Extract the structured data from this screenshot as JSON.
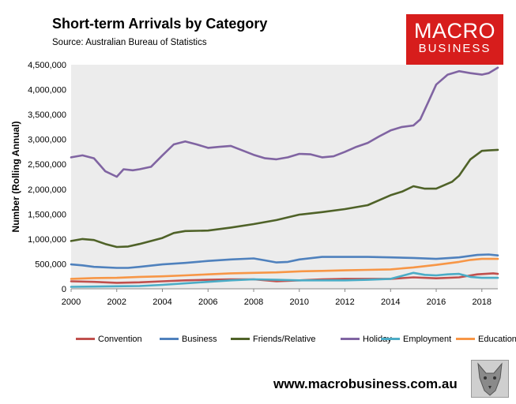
{
  "header": {
    "title": "Short-term Arrivals by Category",
    "source": "Source: Australian Bureau of Statistics"
  },
  "logo": {
    "line1": "MACRO",
    "line2": "BUSINESS",
    "color": "#d71d1c"
  },
  "footer": {
    "website": "www.macrobusiness.com.au"
  },
  "chart_data": {
    "type": "line",
    "title": "Short-term Arrivals by Category",
    "xlabel": "",
    "ylabel": "Number (Rolling Annual)",
    "xlim": [
      2000,
      2018.7
    ],
    "ylim": [
      0,
      4500000
    ],
    "x_ticks": [
      2000,
      2002,
      2004,
      2006,
      2008,
      2010,
      2012,
      2014,
      2016,
      2018
    ],
    "y_ticks": [
      0,
      500000,
      1000000,
      1500000,
      2000000,
      2500000,
      3000000,
      3500000,
      4000000,
      4500000
    ],
    "y_tick_labels": [
      "0",
      "500,000",
      "1,000,000",
      "1,500,000",
      "2,000,000",
      "2,500,000",
      "3,000,000",
      "3,500,000",
      "4,000,000",
      "4,500,000"
    ],
    "plot_background": "#ececec",
    "grid": false,
    "legend_position": "bottom",
    "series": [
      {
        "name": "Convention",
        "color": "#c0504d",
        "points": [
          [
            2000,
            150000
          ],
          [
            2001,
            140000
          ],
          [
            2002,
            120000
          ],
          [
            2003,
            130000
          ],
          [
            2004,
            150000
          ],
          [
            2005,
            170000
          ],
          [
            2006,
            180000
          ],
          [
            2007,
            190000
          ],
          [
            2008,
            190000
          ],
          [
            2009,
            150000
          ],
          [
            2010,
            170000
          ],
          [
            2011,
            190000
          ],
          [
            2012,
            200000
          ],
          [
            2013,
            200000
          ],
          [
            2014,
            200000
          ],
          [
            2015,
            230000
          ],
          [
            2016,
            210000
          ],
          [
            2017,
            230000
          ],
          [
            2017.8,
            290000
          ],
          [
            2018.5,
            310000
          ],
          [
            2018.7,
            300000
          ]
        ]
      },
      {
        "name": "Business",
        "color": "#4f81bd",
        "points": [
          [
            2000,
            490000
          ],
          [
            2000.5,
            470000
          ],
          [
            2001,
            440000
          ],
          [
            2002,
            420000
          ],
          [
            2002.5,
            420000
          ],
          [
            2003,
            440000
          ],
          [
            2004,
            490000
          ],
          [
            2005,
            520000
          ],
          [
            2006,
            560000
          ],
          [
            2007,
            590000
          ],
          [
            2008,
            610000
          ],
          [
            2008.5,
            570000
          ],
          [
            2009,
            530000
          ],
          [
            2009.5,
            540000
          ],
          [
            2010,
            590000
          ],
          [
            2011,
            640000
          ],
          [
            2012,
            640000
          ],
          [
            2013,
            640000
          ],
          [
            2014,
            630000
          ],
          [
            2015,
            620000
          ],
          [
            2016,
            600000
          ],
          [
            2017,
            630000
          ],
          [
            2017.8,
            680000
          ],
          [
            2018.3,
            690000
          ],
          [
            2018.7,
            670000
          ]
        ]
      },
      {
        "name": "Friends/Relative",
        "color": "#4f6228",
        "points": [
          [
            2000,
            960000
          ],
          [
            2000.5,
            1000000
          ],
          [
            2001,
            980000
          ],
          [
            2001.5,
            900000
          ],
          [
            2002,
            840000
          ],
          [
            2002.5,
            850000
          ],
          [
            2003,
            900000
          ],
          [
            2004,
            1020000
          ],
          [
            2004.5,
            1120000
          ],
          [
            2005,
            1160000
          ],
          [
            2006,
            1170000
          ],
          [
            2007,
            1230000
          ],
          [
            2008,
            1300000
          ],
          [
            2009,
            1380000
          ],
          [
            2010,
            1490000
          ],
          [
            2011,
            1540000
          ],
          [
            2012,
            1600000
          ],
          [
            2013,
            1680000
          ],
          [
            2014,
            1880000
          ],
          [
            2014.5,
            1950000
          ],
          [
            2015,
            2060000
          ],
          [
            2015.5,
            2010000
          ],
          [
            2016,
            2010000
          ],
          [
            2016.7,
            2150000
          ],
          [
            2017,
            2270000
          ],
          [
            2017.5,
            2600000
          ],
          [
            2018,
            2770000
          ],
          [
            2018.3,
            2780000
          ],
          [
            2018.7,
            2790000
          ]
        ]
      },
      {
        "name": "Holiday",
        "color": "#8064a2",
        "points": [
          [
            2000,
            2640000
          ],
          [
            2000.5,
            2680000
          ],
          [
            2001,
            2620000
          ],
          [
            2001.5,
            2360000
          ],
          [
            2002,
            2250000
          ],
          [
            2002.3,
            2400000
          ],
          [
            2002.7,
            2380000
          ],
          [
            2003,
            2400000
          ],
          [
            2003.5,
            2450000
          ],
          [
            2004,
            2680000
          ],
          [
            2004.5,
            2900000
          ],
          [
            2005,
            2960000
          ],
          [
            2005.5,
            2900000
          ],
          [
            2006,
            2830000
          ],
          [
            2006.5,
            2850000
          ],
          [
            2007,
            2870000
          ],
          [
            2007.5,
            2780000
          ],
          [
            2008,
            2690000
          ],
          [
            2008.5,
            2620000
          ],
          [
            2009,
            2600000
          ],
          [
            2009.5,
            2640000
          ],
          [
            2010,
            2710000
          ],
          [
            2010.5,
            2700000
          ],
          [
            2011,
            2640000
          ],
          [
            2011.5,
            2660000
          ],
          [
            2012,
            2750000
          ],
          [
            2012.5,
            2850000
          ],
          [
            2013,
            2930000
          ],
          [
            2013.5,
            3060000
          ],
          [
            2014,
            3180000
          ],
          [
            2014.5,
            3250000
          ],
          [
            2015,
            3280000
          ],
          [
            2015.3,
            3400000
          ],
          [
            2015.7,
            3800000
          ],
          [
            2016,
            4100000
          ],
          [
            2016.5,
            4300000
          ],
          [
            2017,
            4370000
          ],
          [
            2017.5,
            4330000
          ],
          [
            2018,
            4300000
          ],
          [
            2018.3,
            4330000
          ],
          [
            2018.7,
            4440000
          ]
        ]
      },
      {
        "name": "Employment",
        "color": "#4bacc6",
        "points": [
          [
            2000,
            40000
          ],
          [
            2001,
            45000
          ],
          [
            2002,
            50000
          ],
          [
            2003,
            55000
          ],
          [
            2004,
            80000
          ],
          [
            2005,
            110000
          ],
          [
            2006,
            140000
          ],
          [
            2007,
            170000
          ],
          [
            2008,
            190000
          ],
          [
            2009,
            180000
          ],
          [
            2010,
            170000
          ],
          [
            2011,
            170000
          ],
          [
            2012,
            170000
          ],
          [
            2013,
            180000
          ],
          [
            2014,
            200000
          ],
          [
            2014.5,
            260000
          ],
          [
            2015,
            320000
          ],
          [
            2015.5,
            280000
          ],
          [
            2016,
            270000
          ],
          [
            2016.5,
            290000
          ],
          [
            2017,
            300000
          ],
          [
            2017.5,
            240000
          ],
          [
            2018,
            220000
          ],
          [
            2018.7,
            220000
          ]
        ]
      },
      {
        "name": "Education",
        "color": "#f79646",
        "points": [
          [
            2000,
            200000
          ],
          [
            2001,
            215000
          ],
          [
            2002,
            220000
          ],
          [
            2003,
            240000
          ],
          [
            2004,
            250000
          ],
          [
            2005,
            270000
          ],
          [
            2006,
            290000
          ],
          [
            2007,
            310000
          ],
          [
            2008,
            320000
          ],
          [
            2009,
            330000
          ],
          [
            2010,
            350000
          ],
          [
            2011,
            360000
          ],
          [
            2012,
            370000
          ],
          [
            2013,
            380000
          ],
          [
            2014,
            390000
          ],
          [
            2015,
            430000
          ],
          [
            2016,
            480000
          ],
          [
            2017,
            540000
          ],
          [
            2017.5,
            580000
          ],
          [
            2018,
            600000
          ],
          [
            2018.7,
            600000
          ]
        ]
      }
    ]
  }
}
